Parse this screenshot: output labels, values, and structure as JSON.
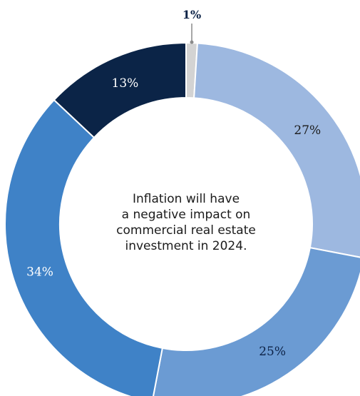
{
  "chart_data": {
    "type": "pie",
    "style": "donut",
    "center_text_lines": [
      "Inflation will have",
      "a negative impact on",
      "commercial real estate",
      "investment in 2024."
    ],
    "slices": [
      {
        "label": "1%",
        "value": 1,
        "color": "#d3d3d3",
        "label_color": "#0d2347",
        "label_style": "callout"
      },
      {
        "label": "27%",
        "value": 27,
        "color": "#9db8e0",
        "label_color": "#1b1b1b",
        "label_style": "inside"
      },
      {
        "label": "25%",
        "value": 25,
        "color": "#6b9bd3",
        "label_color": "#0d2347",
        "label_style": "inside"
      },
      {
        "label": "34%",
        "value": 34,
        "color": "#3f82c7",
        "label_color": "#ffffff",
        "label_style": "inside"
      },
      {
        "label": "13%",
        "value": 13,
        "color": "#0b2447",
        "label_color": "#ffffff",
        "label_style": "inside"
      }
    ]
  }
}
